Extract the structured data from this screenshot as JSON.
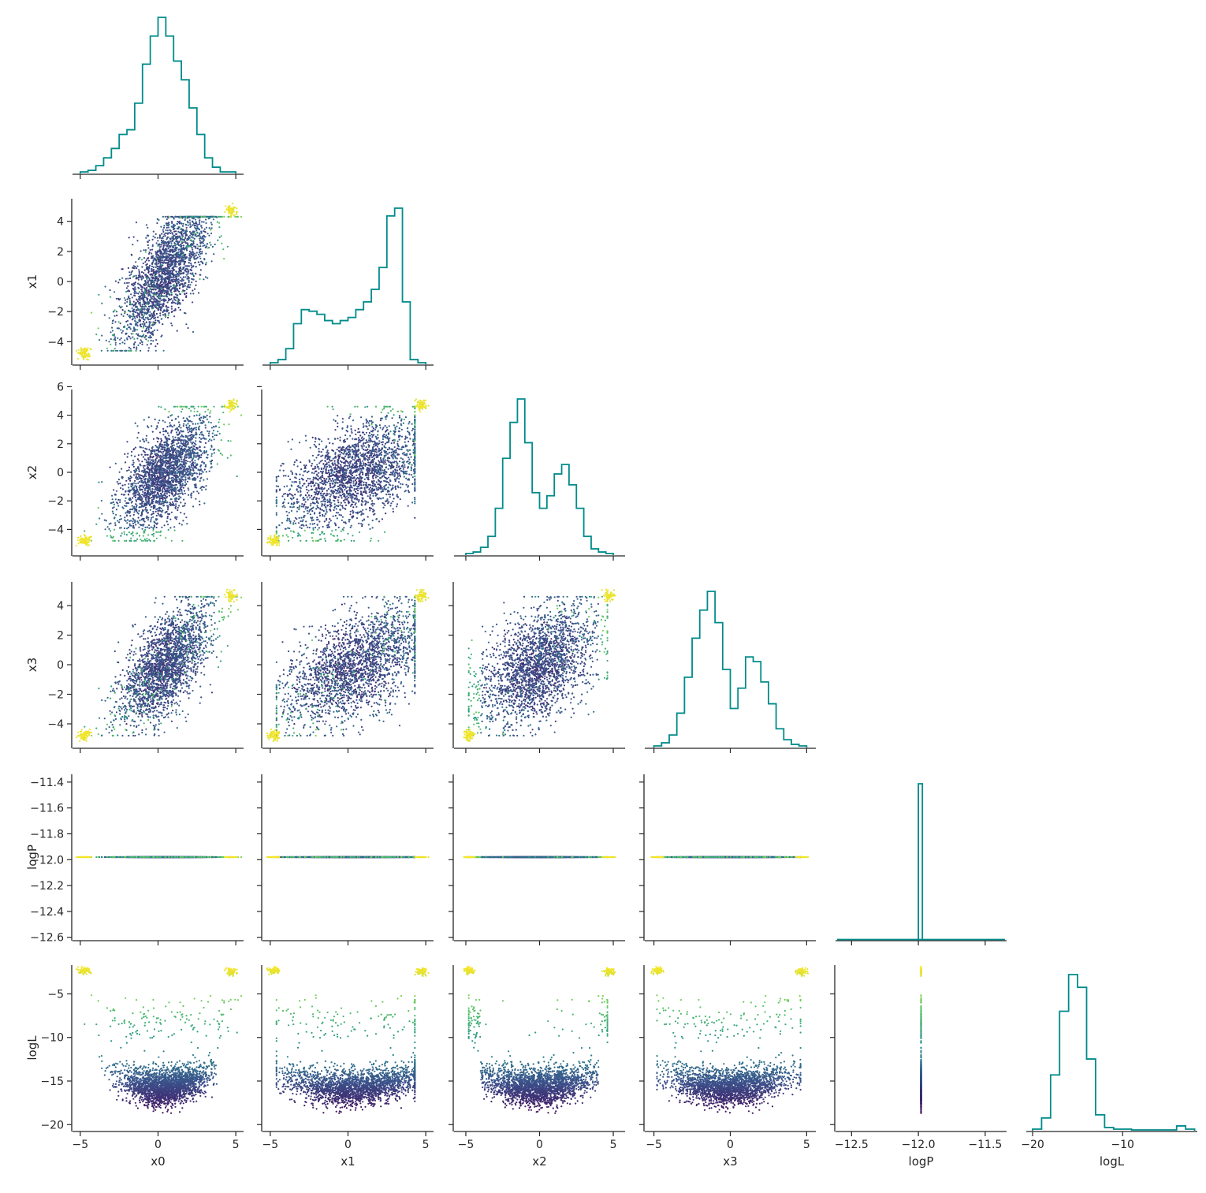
{
  "chart_data": {
    "type": "corner",
    "variables": [
      "x0",
      "x1",
      "x2",
      "x3",
      "logP",
      "logL"
    ],
    "colormap": [
      "#440154",
      "#3b528b",
      "#21918c",
      "#5ec962",
      "#fde725"
    ],
    "color_by": "logL",
    "histogram_color": "#008b8b",
    "ranges": {
      "x0": [
        -5.5,
        5.5
      ],
      "x1": [
        -5.5,
        5.5
      ],
      "x2": [
        -5.8,
        5.8
      ],
      "x3": [
        -5.6,
        5.6
      ],
      "logP": [
        -12.62,
        -11.34
      ],
      "logL": [
        -20.7,
        -1.7
      ]
    },
    "ticks": {
      "x0": [
        -5,
        0,
        5
      ],
      "x1": [
        -5,
        0,
        5
      ],
      "x2": [
        -5,
        0,
        5
      ],
      "x3": [
        -5,
        0,
        5
      ],
      "logP": [
        -12.5,
        -12.0,
        -11.5
      ],
      "logL": [
        -20,
        -10
      ]
    },
    "tick_labels": {
      "x0": [
        "−5",
        "0",
        "5"
      ],
      "x1": [
        "−5",
        "0",
        "5"
      ],
      "x2": [
        "−5",
        "0",
        "5"
      ],
      "x3": [
        "−5",
        "0",
        "5"
      ],
      "logP": [
        "−12.5",
        "−12.0",
        "−11.5"
      ],
      "logL": [
        "−20",
        "−10"
      ]
    },
    "y_ticks": {
      "x1": [
        -4,
        -2,
        0,
        2,
        4
      ],
      "x2": [
        -4,
        -2,
        0,
        2,
        4,
        6
      ],
      "x3": [
        -4,
        -2,
        0,
        2,
        4
      ],
      "logP": [
        -12.6,
        -12.4,
        -12.2,
        -12.0,
        -11.8,
        -11.6,
        -11.4
      ],
      "logL": [
        -20,
        -15,
        -10,
        -5
      ]
    },
    "y_tick_labels": {
      "x1": [
        "−4",
        "−2",
        "0",
        "2",
        "4"
      ],
      "x2": [
        "−4",
        "−2",
        "0",
        "2",
        "4",
        "6"
      ],
      "x3": [
        "−4",
        "−2",
        "0",
        "2",
        "4"
      ],
      "logP": [
        "−12.6",
        "−12.4",
        "−12.2",
        "−12.0",
        "−11.8",
        "−11.6",
        "−11.4"
      ],
      "logL": [
        "−20",
        "−15",
        "−10",
        "−5"
      ]
    },
    "axis_labels": {
      "x0": "x0",
      "x1": "x1",
      "x2": "x2",
      "x3": "x3",
      "logP": "logP",
      "logL": "logL"
    },
    "histograms": {
      "x0": {
        "bin_edges": [
          -5.0,
          -4.5,
          -4.0,
          -3.5,
          -3.0,
          -2.5,
          -2.0,
          -1.5,
          -1.0,
          -0.5,
          0.0,
          0.5,
          1.0,
          1.5,
          2.0,
          2.5,
          3.0,
          3.5,
          4.0,
          4.5,
          5.0
        ],
        "counts": [
          1,
          2,
          5,
          10,
          16,
          25,
          28,
          45,
          70,
          88,
          100,
          88,
          72,
          60,
          42,
          25,
          10,
          4,
          1,
          1
        ]
      },
      "x1": {
        "bin_edges": [
          -5.0,
          -4.5,
          -4.0,
          -3.5,
          -3.0,
          -2.5,
          -2.0,
          -1.5,
          -1.0,
          -0.5,
          0.0,
          0.5,
          1.0,
          1.5,
          2.0,
          2.5,
          3.0,
          3.5,
          4.0,
          4.5,
          5.0
        ],
        "counts": [
          1,
          3,
          10,
          26,
          35,
          34,
          32,
          28,
          26,
          28,
          30,
          35,
          40,
          48,
          62,
          95,
          100,
          40,
          3,
          1
        ]
      },
      "x2": {
        "bin_edges": [
          -5.0,
          -4.5,
          -4.0,
          -3.5,
          -3.0,
          -2.5,
          -2.0,
          -1.5,
          -1.0,
          -0.5,
          0.0,
          0.5,
          1.0,
          1.5,
          2.0,
          2.5,
          3.0,
          3.5,
          4.0,
          4.5,
          5.0
        ],
        "counts": [
          1,
          2,
          5,
          12,
          30,
          62,
          85,
          100,
          72,
          40,
          30,
          38,
          52,
          58,
          45,
          30,
          12,
          4,
          2,
          1
        ]
      },
      "x3": {
        "bin_edges": [
          -5.0,
          -4.5,
          -4.0,
          -3.5,
          -3.0,
          -2.5,
          -2.0,
          -1.5,
          -1.0,
          -0.5,
          0.0,
          0.5,
          1.0,
          1.5,
          2.0,
          2.5,
          3.0,
          3.5,
          4.0,
          4.5,
          5.0
        ],
        "counts": [
          1,
          3,
          8,
          22,
          45,
          70,
          88,
          100,
          80,
          50,
          25,
          38,
          58,
          55,
          42,
          28,
          12,
          5,
          2,
          1
        ]
      },
      "logP": {
        "bin_edges": [
          -12.0,
          -11.97
        ],
        "counts": [
          100
        ]
      },
      "logL": {
        "bin_edges": [
          -20.0,
          -19.0,
          -18.0,
          -17.0,
          -16.0,
          -15.0,
          -14.0,
          -13.0,
          -12.0,
          -11.0,
          -10.0,
          -9.0,
          -8.0,
          -7.0,
          -6.0,
          -5.0,
          -4.0,
          -3.0,
          -2.0
        ],
        "counts": [
          1,
          8,
          35,
          75,
          98,
          90,
          45,
          10,
          2,
          1,
          1,
          0.5,
          0.5,
          0.5,
          0.5,
          0.5,
          3,
          1
        ]
      }
    },
    "logP_value": -11.98,
    "scatter_note_samples": 2500,
    "peaks": {
      "x0": [
        [
          -4.8,
          -4.8
        ],
        [
          4.7,
          4.7
        ]
      ],
      "logL_range_in_peaks": [
        -2.5,
        -1.8
      ]
    }
  }
}
